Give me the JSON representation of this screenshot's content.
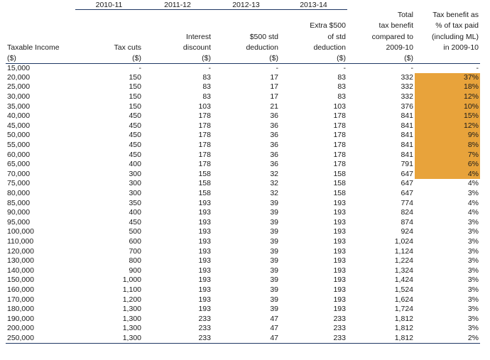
{
  "year_headers": [
    "2010-11",
    "2011-12",
    "2012-13",
    "2013-14"
  ],
  "columns": [
    {
      "header": "Taxable Income",
      "unit": "($)"
    },
    {
      "header": "Tax cuts",
      "unit": "($)"
    },
    {
      "header": "Interest\ndiscount",
      "unit": "($)"
    },
    {
      "header": "$500 std\ndeduction",
      "unit": "($)"
    },
    {
      "header": "Extra $500\nof std\ndeduction",
      "unit": "($)"
    },
    {
      "header": "Total\ntax benefit\ncompared to\n2009-10",
      "unit": "($)"
    },
    {
      "header": "Tax benefit as\n% of tax paid\n(including ML)\nin 2009-10",
      "unit": ""
    }
  ],
  "highlight_color": "#e8a33b",
  "rows": [
    {
      "cells": [
        "15,000",
        "-",
        "-",
        "-",
        "-",
        "-",
        "-"
      ],
      "highlight": false
    },
    {
      "cells": [
        "20,000",
        "150",
        "83",
        "17",
        "83",
        "332",
        "37%"
      ],
      "highlight": true
    },
    {
      "cells": [
        "25,000",
        "150",
        "83",
        "17",
        "83",
        "332",
        "18%"
      ],
      "highlight": true
    },
    {
      "cells": [
        "30,000",
        "150",
        "83",
        "17",
        "83",
        "332",
        "12%"
      ],
      "highlight": true
    },
    {
      "cells": [
        "35,000",
        "150",
        "103",
        "21",
        "103",
        "376",
        "10%"
      ],
      "highlight": true
    },
    {
      "cells": [
        "40,000",
        "450",
        "178",
        "36",
        "178",
        "841",
        "15%"
      ],
      "highlight": true
    },
    {
      "cells": [
        "45,000",
        "450",
        "178",
        "36",
        "178",
        "841",
        "12%"
      ],
      "highlight": true
    },
    {
      "cells": [
        "50,000",
        "450",
        "178",
        "36",
        "178",
        "841",
        "9%"
      ],
      "highlight": true
    },
    {
      "cells": [
        "55,000",
        "450",
        "178",
        "36",
        "178",
        "841",
        "8%"
      ],
      "highlight": true
    },
    {
      "cells": [
        "60,000",
        "450",
        "178",
        "36",
        "178",
        "841",
        "7%"
      ],
      "highlight": true
    },
    {
      "cells": [
        "65,000",
        "400",
        "178",
        "36",
        "178",
        "791",
        "6%"
      ],
      "highlight": true
    },
    {
      "cells": [
        "70,000",
        "300",
        "158",
        "32",
        "158",
        "647",
        "4%"
      ],
      "highlight": true
    },
    {
      "cells": [
        "75,000",
        "300",
        "158",
        "32",
        "158",
        "647",
        "4%"
      ],
      "highlight": false
    },
    {
      "cells": [
        "80,000",
        "300",
        "158",
        "32",
        "158",
        "647",
        "3%"
      ],
      "highlight": false
    },
    {
      "cells": [
        "85,000",
        "350",
        "193",
        "39",
        "193",
        "774",
        "4%"
      ],
      "highlight": false
    },
    {
      "cells": [
        "90,000",
        "400",
        "193",
        "39",
        "193",
        "824",
        "4%"
      ],
      "highlight": false
    },
    {
      "cells": [
        "95,000",
        "450",
        "193",
        "39",
        "193",
        "874",
        "3%"
      ],
      "highlight": false
    },
    {
      "cells": [
        "100,000",
        "500",
        "193",
        "39",
        "193",
        "924",
        "3%"
      ],
      "highlight": false
    },
    {
      "cells": [
        "110,000",
        "600",
        "193",
        "39",
        "193",
        "1,024",
        "3%"
      ],
      "highlight": false
    },
    {
      "cells": [
        "120,000",
        "700",
        "193",
        "39",
        "193",
        "1,124",
        "3%"
      ],
      "highlight": false
    },
    {
      "cells": [
        "130,000",
        "800",
        "193",
        "39",
        "193",
        "1,224",
        "3%"
      ],
      "highlight": false
    },
    {
      "cells": [
        "140,000",
        "900",
        "193",
        "39",
        "193",
        "1,324",
        "3%"
      ],
      "highlight": false
    },
    {
      "cells": [
        "150,000",
        "1,000",
        "193",
        "39",
        "193",
        "1,424",
        "3%"
      ],
      "highlight": false
    },
    {
      "cells": [
        "160,000",
        "1,100",
        "193",
        "39",
        "193",
        "1,524",
        "3%"
      ],
      "highlight": false
    },
    {
      "cells": [
        "170,000",
        "1,200",
        "193",
        "39",
        "193",
        "1,624",
        "3%"
      ],
      "highlight": false
    },
    {
      "cells": [
        "180,000",
        "1,300",
        "193",
        "39",
        "193",
        "1,724",
        "3%"
      ],
      "highlight": false
    },
    {
      "cells": [
        "190,000",
        "1,300",
        "233",
        "47",
        "233",
        "1,812",
        "3%"
      ],
      "highlight": false
    },
    {
      "cells": [
        "200,000",
        "1,300",
        "233",
        "47",
        "233",
        "1,812",
        "3%"
      ],
      "highlight": false
    },
    {
      "cells": [
        "250,000",
        "1,300",
        "233",
        "47",
        "233",
        "1,812",
        "2%"
      ],
      "highlight": false
    }
  ]
}
